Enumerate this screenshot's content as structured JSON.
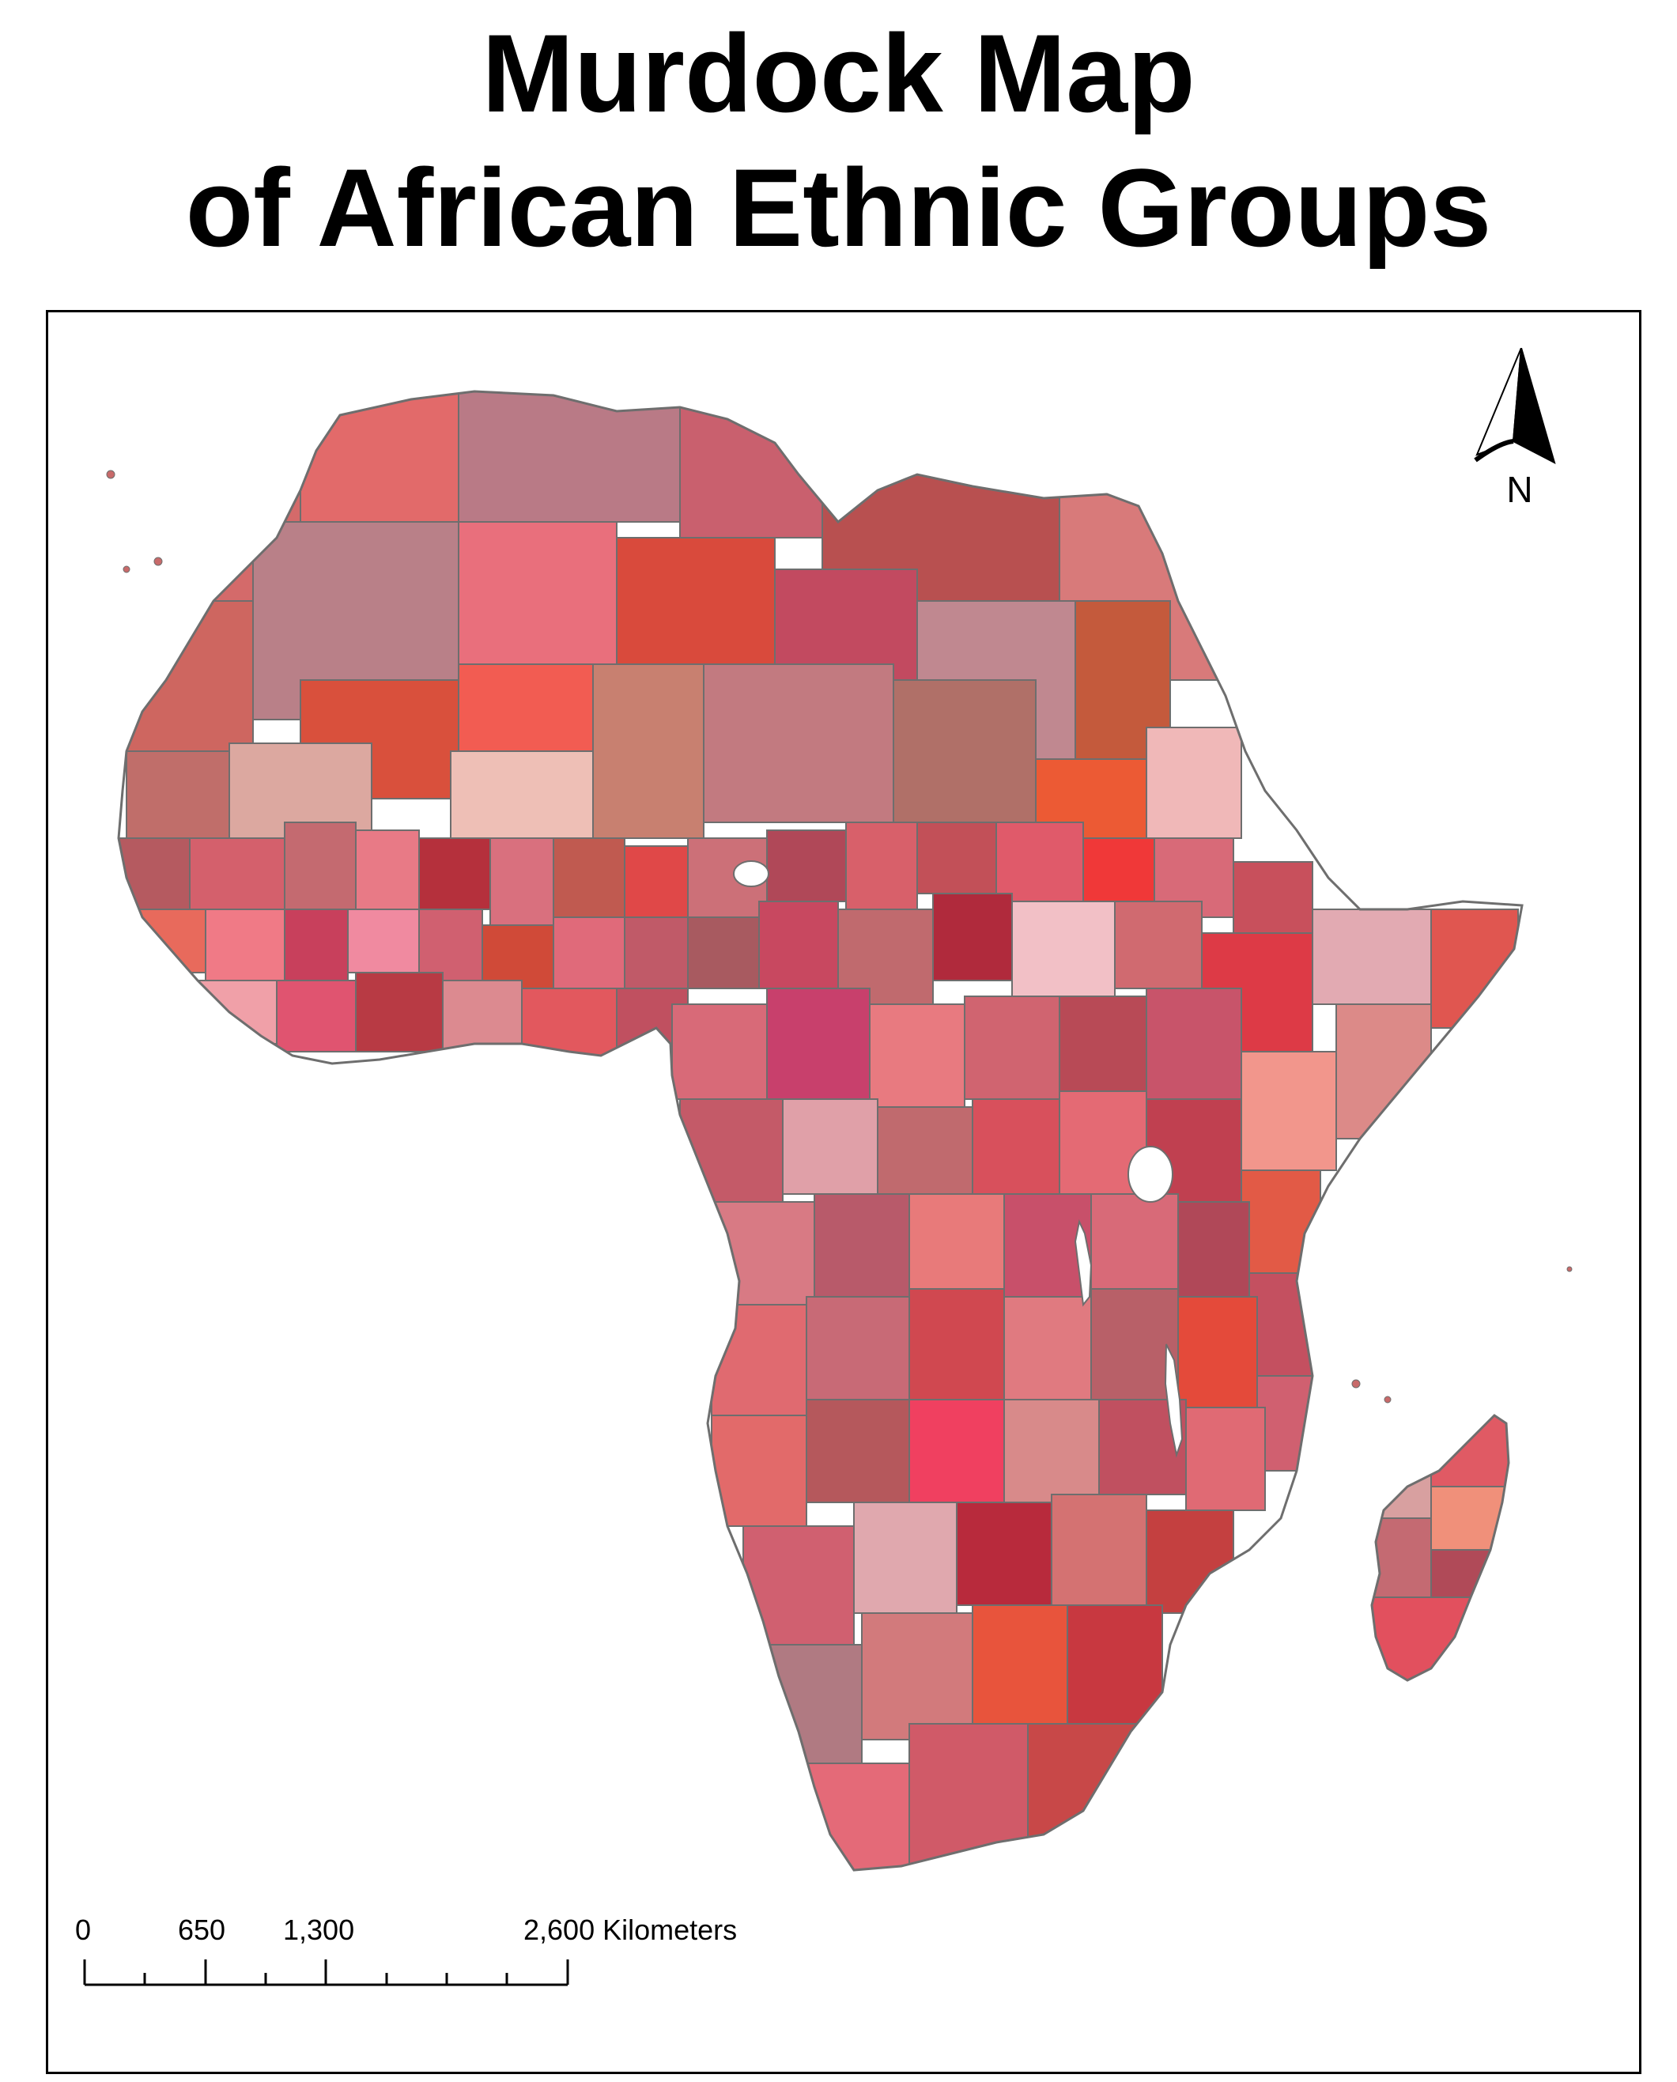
{
  "title": {
    "line1": "Murdock Map",
    "line2": "of African Ethnic Groups"
  },
  "north_arrow": {
    "label": "N",
    "icon": "north-arrow-icon"
  },
  "scale_bar": {
    "ticks": [
      "0",
      "650",
      "1,300",
      "2,600 Kilometers"
    ]
  },
  "colors": {
    "border": "#6e6e6e",
    "palette": [
      "#c45a64",
      "#e07070",
      "#d94a4a",
      "#b97880",
      "#e89090",
      "#cf6b6b",
      "#f06060",
      "#a96070",
      "#e8b0a8",
      "#dc5555",
      "#c87878",
      "#f4a0a0",
      "#b84050",
      "#e06a50",
      "#d88090"
    ]
  }
}
